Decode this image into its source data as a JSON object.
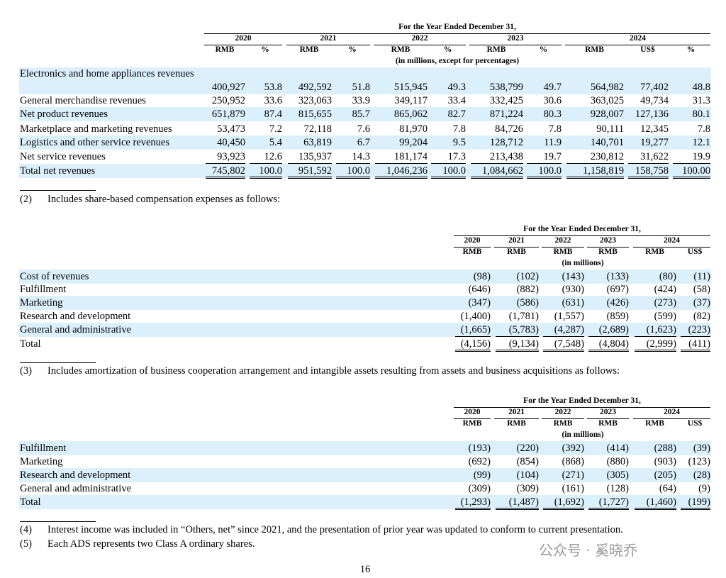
{
  "table1": {
    "header": "For the Year Ended December 31,",
    "years": [
      "2020",
      "2021",
      "2022",
      "2023",
      "2024"
    ],
    "subheaders": [
      "RMB",
      "%",
      "RMB",
      "%",
      "RMB",
      "%",
      "RMB",
      "%",
      "RMB",
      "US$",
      "%"
    ],
    "unit_note": "(in millions, except for percentages)",
    "rows": [
      {
        "label": "Electronics and home appliances revenues",
        "cells": [
          "400,927",
          "53.8",
          "492,592",
          "51.8",
          "515,945",
          "49.3",
          "538,799",
          "49.7",
          "564,982",
          "77,402",
          "48.8"
        ]
      },
      {
        "label": "General merchandise revenues",
        "cells": [
          "250,952",
          "33.6",
          "323,063",
          "33.9",
          "349,117",
          "33.4",
          "332,425",
          "30.6",
          "363,025",
          "49,734",
          "31.3"
        ]
      },
      {
        "label": "Net product revenues",
        "cells": [
          "651,879",
          "87.4",
          "815,655",
          "85.7",
          "865,062",
          "82.7",
          "871,224",
          "80.3",
          "928,007",
          "127,136",
          "80.1"
        ]
      },
      {
        "label": "Marketplace and marketing revenues",
        "cells": [
          "53,473",
          "7.2",
          "72,118",
          "7.6",
          "81,970",
          "7.8",
          "84,726",
          "7.8",
          "90,111",
          "12,345",
          "7.8"
        ]
      },
      {
        "label": "Logistics and other service revenues",
        "cells": [
          "40,450",
          "5.4",
          "63,819",
          "6.7",
          "99,204",
          "9.5",
          "128,712",
          "11.9",
          "140,701",
          "19,277",
          "12.1"
        ]
      },
      {
        "label": "Net service revenues",
        "cells": [
          "93,923",
          "12.6",
          "135,937",
          "14.3",
          "181,174",
          "17.3",
          "213,438",
          "19.7",
          "230,812",
          "31,622",
          "19.9"
        ]
      },
      {
        "label": "Total net revenues",
        "cells": [
          "745,802",
          "100.0",
          "951,592",
          "100.0",
          "1,046,236",
          "100.0",
          "1,084,662",
          "100.0",
          "1,158,819",
          "158,758",
          "100.00"
        ]
      }
    ]
  },
  "note2": {
    "marker": "(2)",
    "text": "Includes share-based compensation expenses as follows:"
  },
  "table2": {
    "header": "For the Year Ended December 31,",
    "years": [
      "2020",
      "2021",
      "2022",
      "2023",
      "2024"
    ],
    "subheaders": [
      "RMB",
      "RMB",
      "RMB",
      "RMB",
      "RMB",
      "US$"
    ],
    "unit_note": "(in millions)",
    "rows": [
      {
        "label": "Cost of revenues",
        "cells": [
          "(98)",
          "(102)",
          "(143)",
          "(133)",
          "(80)",
          "(11)"
        ]
      },
      {
        "label": "Fulfillment",
        "cells": [
          "(646)",
          "(882)",
          "(930)",
          "(697)",
          "(424)",
          "(58)"
        ]
      },
      {
        "label": "Marketing",
        "cells": [
          "(347)",
          "(586)",
          "(631)",
          "(426)",
          "(273)",
          "(37)"
        ]
      },
      {
        "label": "Research and development",
        "cells": [
          "(1,400)",
          "(1,781)",
          "(1,557)",
          "(859)",
          "(599)",
          "(82)"
        ]
      },
      {
        "label": "General and administrative",
        "cells": [
          "(1,665)",
          "(5,783)",
          "(4,287)",
          "(2,689)",
          "(1,623)",
          "(223)"
        ]
      },
      {
        "label": "Total",
        "cells": [
          "(4,156)",
          "(9,134)",
          "(7,548)",
          "(4,804)",
          "(2,999)",
          "(411)"
        ]
      }
    ]
  },
  "note3": {
    "marker": "(3)",
    "text": "Includes amortization of business cooperation arrangement and intangible assets resulting from assets and business acquisitions as follows:"
  },
  "table3": {
    "header": "For the Year Ended December 31,",
    "years": [
      "2020",
      "2021",
      "2022",
      "2023",
      "2024"
    ],
    "subheaders": [
      "RMB",
      "RMB",
      "RMB",
      "RMB",
      "RMB",
      "US$"
    ],
    "unit_note": "(in millions)",
    "rows": [
      {
        "label": "Fulfillment",
        "cells": [
          "(193)",
          "(220)",
          "(392)",
          "(414)",
          "(288)",
          "(39)"
        ]
      },
      {
        "label": "Marketing",
        "cells": [
          "(692)",
          "(854)",
          "(868)",
          "(880)",
          "(903)",
          "(123)"
        ]
      },
      {
        "label": "Research and development",
        "cells": [
          "(99)",
          "(104)",
          "(271)",
          "(305)",
          "(205)",
          "(28)"
        ]
      },
      {
        "label": "General and administrative",
        "cells": [
          "(309)",
          "(309)",
          "(161)",
          "(128)",
          "(64)",
          "(9)"
        ]
      },
      {
        "label": "Total",
        "cells": [
          "(1,293)",
          "(1,487)",
          "(1,692)",
          "(1,727)",
          "(1,460)",
          "(199)"
        ]
      }
    ]
  },
  "note4": {
    "marker": "(4)",
    "text": "Interest income was included in “Others, net” since 2021, and the presentation of prior year was updated to conform to current presentation."
  },
  "note5": {
    "marker": "(5)",
    "text": "Each ADS represents two Class A ordinary shares."
  },
  "page_number": "16",
  "watermark": "公众号 · 奚晓乔"
}
